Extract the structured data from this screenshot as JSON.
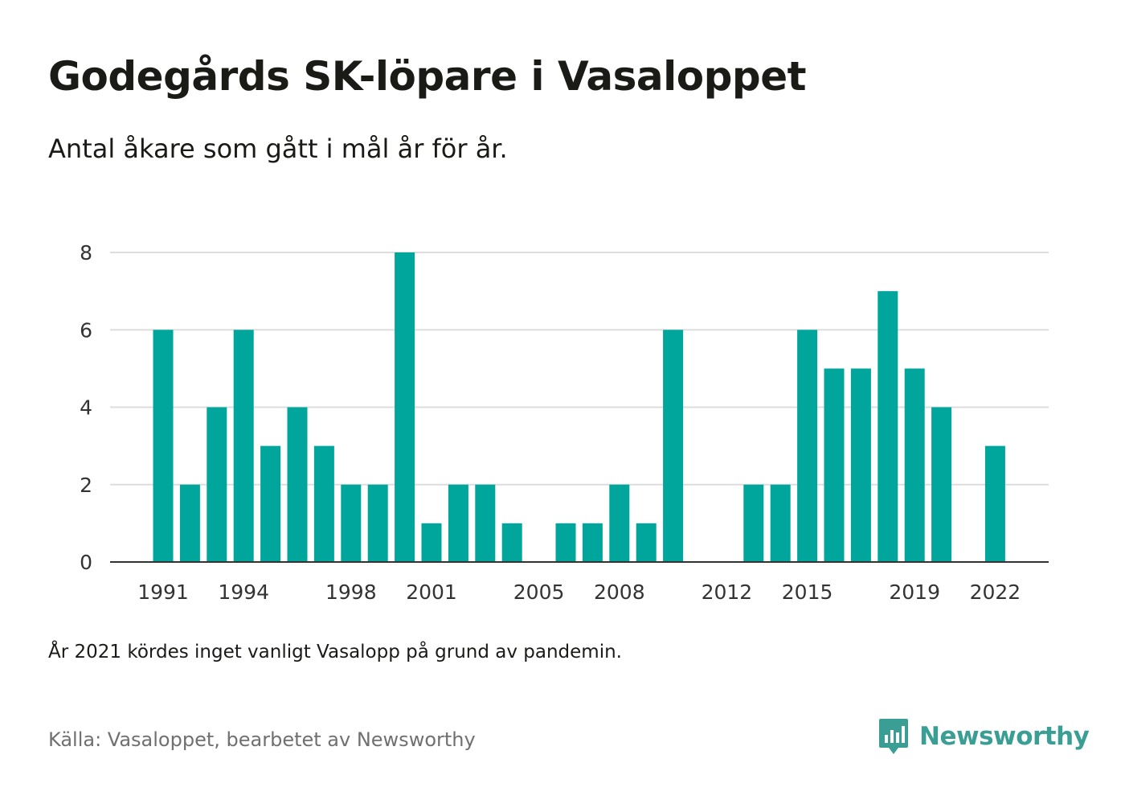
{
  "header": {
    "title": "Godegårds SK-löpare i Vasaloppet",
    "subtitle": "Antal åkare som gått i mål år för år."
  },
  "footer": {
    "note": "År 2021 kördes inget vanligt Vasalopp på grund av pandemin.",
    "source": "Källa: Vasaloppet, bearbetet av Newsworthy",
    "brand_name": "Newsworthy",
    "brand_icon": "newsworthy-logo-icon"
  },
  "colors": {
    "bar": "#00a69c",
    "brand": "#3a9e95",
    "grid": "#dddddd",
    "axis": "#333333"
  },
  "chart_data": {
    "type": "bar",
    "categories": [
      1991,
      1992,
      1993,
      1994,
      1995,
      1996,
      1997,
      1998,
      1999,
      2000,
      2001,
      2002,
      2003,
      2004,
      2005,
      2006,
      2007,
      2008,
      2009,
      2010,
      2011,
      2012,
      2013,
      2014,
      2015,
      2016,
      2017,
      2018,
      2019,
      2020,
      2021,
      2022
    ],
    "values": [
      6,
      2,
      4,
      6,
      3,
      4,
      3,
      2,
      2,
      8,
      1,
      2,
      2,
      1,
      0,
      1,
      1,
      2,
      1,
      6,
      0,
      0,
      2,
      2,
      6,
      5,
      5,
      7,
      5,
      4,
      0,
      3
    ],
    "x_tick_labels": [
      "1991",
      "1994",
      "1998",
      "2001",
      "2005",
      "2008",
      "2012",
      "2015",
      "2019",
      "2022"
    ],
    "y_ticks": [
      0,
      2,
      4,
      6,
      8
    ],
    "ylim": [
      0,
      8
    ],
    "grid": true,
    "xlabel": "",
    "ylabel": ""
  }
}
